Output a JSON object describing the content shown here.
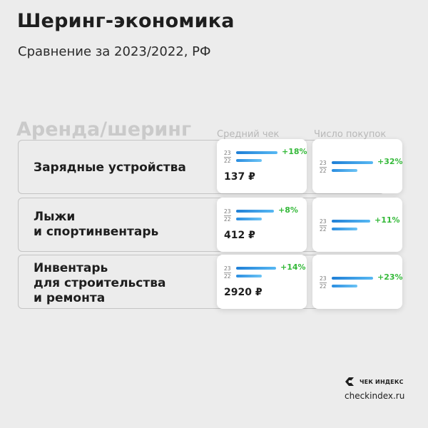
{
  "title": "Шеринг-экономика",
  "subtitle": "Сравнение за 2023/2022, РФ",
  "section": "Аренда/шеринг",
  "columns": {
    "avg_check": "Средний чек",
    "purchases": "Число покупок"
  },
  "year_labels": {
    "current": "23",
    "previous": "22"
  },
  "chart_data": {
    "type": "bar",
    "title": "Шеринг-экономика",
    "subtitle": "Сравнение за 2023/2022, РФ",
    "categories": [
      "Зарядные устройства",
      "Лыжи и спортинвентарь",
      "Инвентарь для строительства и ремонта"
    ],
    "rows": [
      {
        "label": "Зарядные устройства",
        "avg_check": {
          "change": "+18%",
          "change_value": 18,
          "value": "137 ₽",
          "value_2023": 137
        },
        "purchases": {
          "change": "+32%",
          "change_value": 32
        }
      },
      {
        "label": "Лыжи\nи спортинвентарь",
        "avg_check": {
          "change": "+8%",
          "change_value": 8,
          "value": "412 ₽",
          "value_2023": 412
        },
        "purchases": {
          "change": "+11%",
          "change_value": 11
        }
      },
      {
        "label": "Инвентарь\nдля строительства\nи ремонта",
        "avg_check": {
          "change": "+14%",
          "change_value": 14,
          "value": "2920 ₽",
          "value_2023": 2920
        },
        "purchases": {
          "change": "+23%",
          "change_value": 23
        }
      }
    ]
  },
  "brand": {
    "name": "ЧЕК ИНДЕКС",
    "site": "checkindex.ru"
  },
  "colors": {
    "bar_start": "#1f7fd6",
    "bar_end": "#57b8f3",
    "positive": "#35b93a"
  }
}
